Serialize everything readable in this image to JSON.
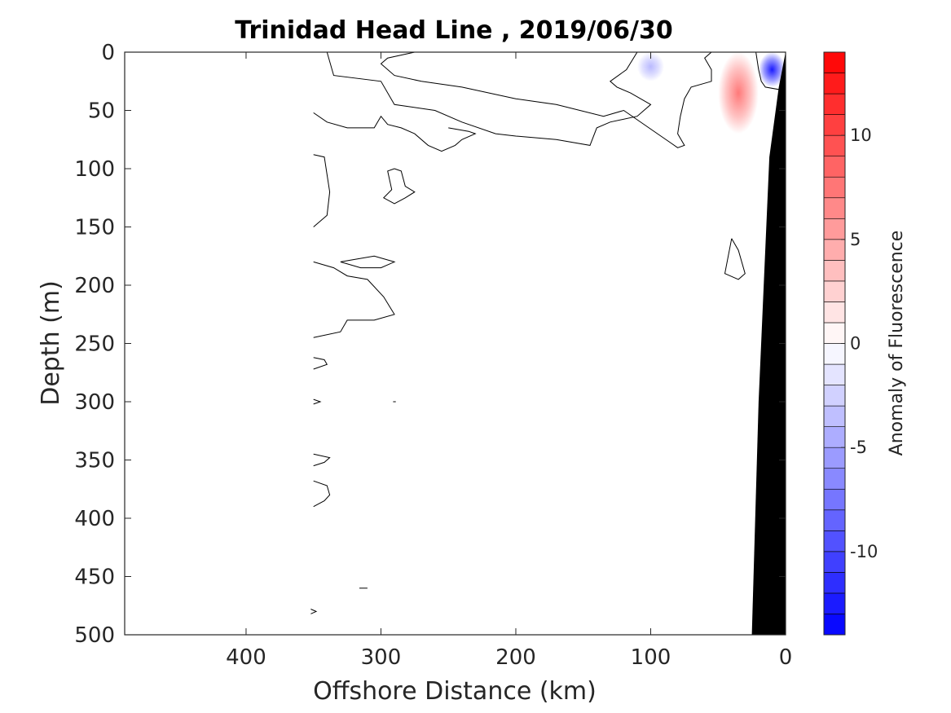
{
  "chart_data": {
    "type": "heatmap",
    "title": "Trinidad Head Line , 2019/06/30",
    "xlabel": "Offshore Distance (km)",
    "ylabel": "Depth (m)",
    "colorbar_label": "Anomaly of Fluorescence",
    "xlim": [
      490,
      0
    ],
    "ylim": [
      0,
      500
    ],
    "y_reversed": true,
    "x_reversed": true,
    "xticks": [
      400,
      300,
      200,
      100,
      0
    ],
    "xtick_labels": [
      "400",
      "300",
      "200",
      "100",
      "0"
    ],
    "yticks": [
      0,
      50,
      100,
      150,
      200,
      250,
      300,
      350,
      400,
      450,
      500
    ],
    "ytick_labels": [
      "0",
      "50",
      "100",
      "150",
      "200",
      "250",
      "300",
      "350",
      "400",
      "450",
      "500"
    ],
    "colorbar": {
      "range": [
        -14,
        14
      ],
      "ticks": [
        10,
        5,
        0,
        -5,
        -10
      ],
      "tick_labels": [
        "10",
        "5",
        "0",
        "-5",
        "-10"
      ],
      "levels": 28,
      "colormap": "blue-white-red",
      "low_color": "#0000ff",
      "mid_color": "#ffffff",
      "high_color": "#ff0000"
    },
    "bathymetry_color": "#000000",
    "grid": false,
    "anomaly_patches": [
      {
        "sign": "positive",
        "x": [
          50,
          20
        ],
        "depth": [
          0,
          70
        ],
        "peak": 3
      },
      {
        "sign": "negative",
        "x": [
          110,
          90
        ],
        "depth": [
          0,
          25
        ],
        "peak": -1
      },
      {
        "sign": "negative",
        "x": [
          20,
          0
        ],
        "depth": [
          0,
          30
        ],
        "peak": -6
      }
    ],
    "zero_contours": [
      [
        [
          340,
          0
        ],
        [
          335,
          20
        ],
        [
          300,
          25
        ],
        [
          290,
          45
        ],
        [
          260,
          50
        ],
        [
          240,
          60
        ],
        [
          215,
          70
        ],
        [
          200,
          72
        ],
        [
          170,
          75
        ],
        [
          145,
          80
        ],
        [
          140,
          65
        ],
        [
          130,
          60
        ],
        [
          110,
          55
        ],
        [
          100,
          45
        ],
        [
          115,
          35
        ],
        [
          125,
          30
        ],
        [
          130,
          25
        ],
        [
          118,
          15
        ],
        [
          110,
          0
        ]
      ],
      [
        [
          275,
          0
        ],
        [
          295,
          5
        ],
        [
          300,
          10
        ],
        [
          290,
          20
        ],
        [
          270,
          25
        ],
        [
          240,
          30
        ],
        [
          200,
          40
        ],
        [
          170,
          45
        ],
        [
          135,
          55
        ],
        [
          120,
          50
        ],
        [
          95,
          70
        ],
        [
          85,
          78
        ],
        [
          80,
          82
        ],
        [
          75,
          80
        ],
        [
          80,
          70
        ],
        [
          78,
          55
        ],
        [
          75,
          40
        ],
        [
          70,
          30
        ],
        [
          55,
          25
        ],
        [
          55,
          15
        ],
        [
          60,
          5
        ],
        [
          55,
          0
        ]
      ],
      [
        [
          350,
          52
        ],
        [
          340,
          60
        ],
        [
          325,
          65
        ],
        [
          305,
          65
        ],
        [
          300,
          55
        ],
        [
          295,
          62
        ],
        [
          285,
          65
        ],
        [
          275,
          70
        ],
        [
          265,
          80
        ],
        [
          255,
          85
        ],
        [
          245,
          80
        ],
        [
          240,
          75
        ],
        [
          230,
          70
        ],
        [
          235,
          68
        ],
        [
          250,
          65
        ]
      ],
      [
        [
          350,
          88
        ],
        [
          342,
          90
        ],
        [
          340,
          105
        ],
        [
          338,
          120
        ],
        [
          340,
          140
        ],
        [
          350,
          150
        ]
      ],
      [
        [
          290,
          100
        ],
        [
          285,
          102
        ],
        [
          282,
          115
        ],
        [
          275,
          120
        ],
        [
          282,
          125
        ],
        [
          290,
          130
        ],
        [
          298,
          125
        ],
        [
          292,
          118
        ],
        [
          295,
          102
        ],
        [
          290,
          100
        ]
      ],
      [
        [
          350,
          180
        ],
        [
          335,
          185
        ],
        [
          325,
          192
        ],
        [
          310,
          195
        ],
        [
          298,
          210
        ],
        [
          290,
          225
        ],
        [
          305,
          230
        ],
        [
          325,
          230
        ],
        [
          330,
          240
        ],
        [
          350,
          245
        ]
      ],
      [
        [
          330,
          180
        ],
        [
          320,
          178
        ],
        [
          305,
          175
        ],
        [
          290,
          180
        ],
        [
          300,
          185
        ],
        [
          315,
          185
        ],
        [
          330,
          180
        ]
      ],
      [
        [
          350,
          262
        ],
        [
          342,
          264
        ],
        [
          340,
          268
        ],
        [
          350,
          272
        ]
      ],
      [
        [
          350,
          298
        ],
        [
          345,
          300
        ],
        [
          350,
          302
        ]
      ],
      [
        [
          350,
          345
        ],
        [
          338,
          348
        ],
        [
          342,
          352
        ],
        [
          350,
          355
        ]
      ],
      [
        [
          350,
          368
        ],
        [
          340,
          372
        ],
        [
          338,
          380
        ],
        [
          342,
          385
        ],
        [
          350,
          390
        ]
      ],
      [
        [
          40,
          160
        ],
        [
          35,
          170
        ],
        [
          30,
          190
        ],
        [
          35,
          195
        ],
        [
          45,
          190
        ],
        [
          40,
          160
        ]
      ],
      [
        [
          352,
          478
        ],
        [
          348,
          480
        ],
        [
          352,
          482
        ]
      ],
      [
        [
          316,
          460
        ],
        [
          310,
          460
        ]
      ],
      [
        [
          291,
          300
        ],
        [
          289,
          300
        ]
      ]
    ],
    "near_shore_contour": [
      [
        22,
        0
      ],
      [
        20,
        15
      ],
      [
        18,
        25
      ],
      [
        15,
        30
      ],
      [
        5,
        32
      ],
      [
        0,
        30
      ]
    ]
  }
}
